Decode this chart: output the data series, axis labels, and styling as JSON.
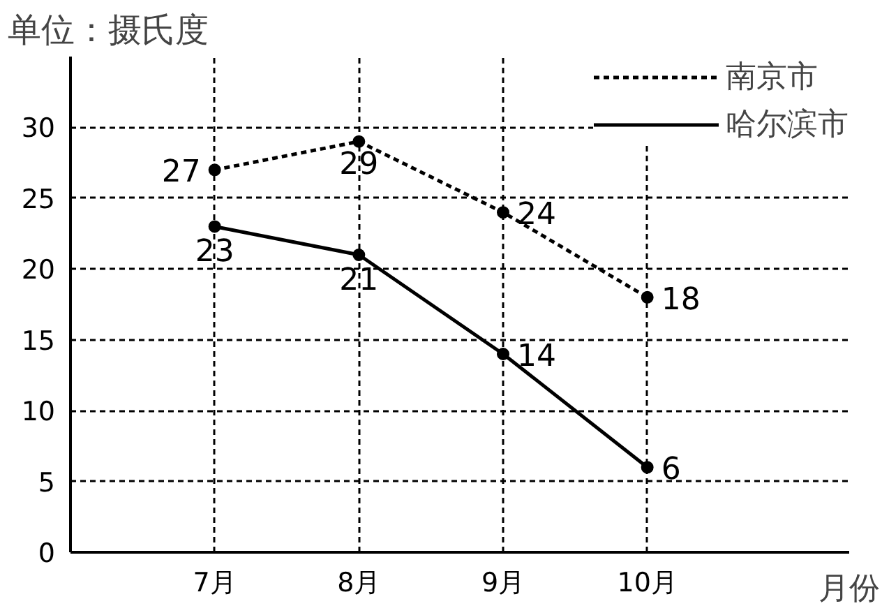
{
  "chart_data": {
    "type": "line",
    "ylabel": "单位：摄氏度",
    "xlabel": "月份",
    "categories": [
      "7月",
      "8月",
      "9月",
      "10月"
    ],
    "series": [
      {
        "name": "南京市",
        "color": "#000000",
        "values": [
          27,
          29,
          24,
          18
        ],
        "line_style": "dashed"
      },
      {
        "name": "哈尔滨市",
        "color": "#000000",
        "values": [
          23,
          21,
          14,
          6
        ],
        "line_style": "solid"
      }
    ],
    "ylim": [
      0,
      35
    ],
    "yticks": [
      0,
      5,
      10,
      15,
      20,
      25,
      30
    ],
    "grid": true,
    "legend": "top right",
    "marker": "circle",
    "data_labels": true
  }
}
